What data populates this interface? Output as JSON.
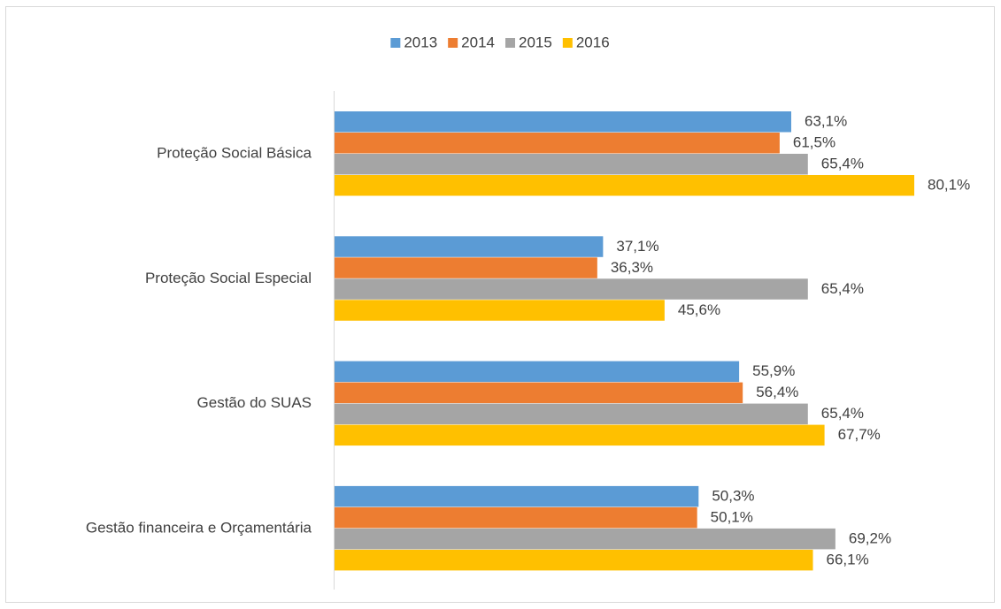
{
  "chart_data": {
    "type": "hbar",
    "categories": [
      "Proteção Social Básica",
      "Proteção Social Especial",
      "Gestão do SUAS",
      "Gestão financeira e Orçamentária"
    ],
    "series": [
      {
        "name": "2013",
        "color": "#5b9bd5",
        "values": [
          63.1,
          37.1,
          55.9,
          50.3
        ],
        "value_labels": [
          "63,1%",
          "37,1%",
          "55,9%",
          "50,3%"
        ]
      },
      {
        "name": "2014",
        "color": "#ed7d31",
        "values": [
          61.5,
          36.3,
          56.4,
          50.1
        ],
        "value_labels": [
          "61,5%",
          "36,3%",
          "56,4%",
          "50,1%"
        ]
      },
      {
        "name": "2015",
        "color": "#a5a5a5",
        "values": [
          65.4,
          65.4,
          65.4,
          69.2
        ],
        "value_labels": [
          "65,4%",
          "65,4%",
          "65,4%",
          "69,2%"
        ]
      },
      {
        "name": "2016",
        "color": "#ffc000",
        "values": [
          80.1,
          45.6,
          67.7,
          66.1
        ],
        "value_labels": [
          "80,1%",
          "45,6%",
          "67,7%",
          "66,1%"
        ]
      }
    ],
    "legend": "top"
  }
}
